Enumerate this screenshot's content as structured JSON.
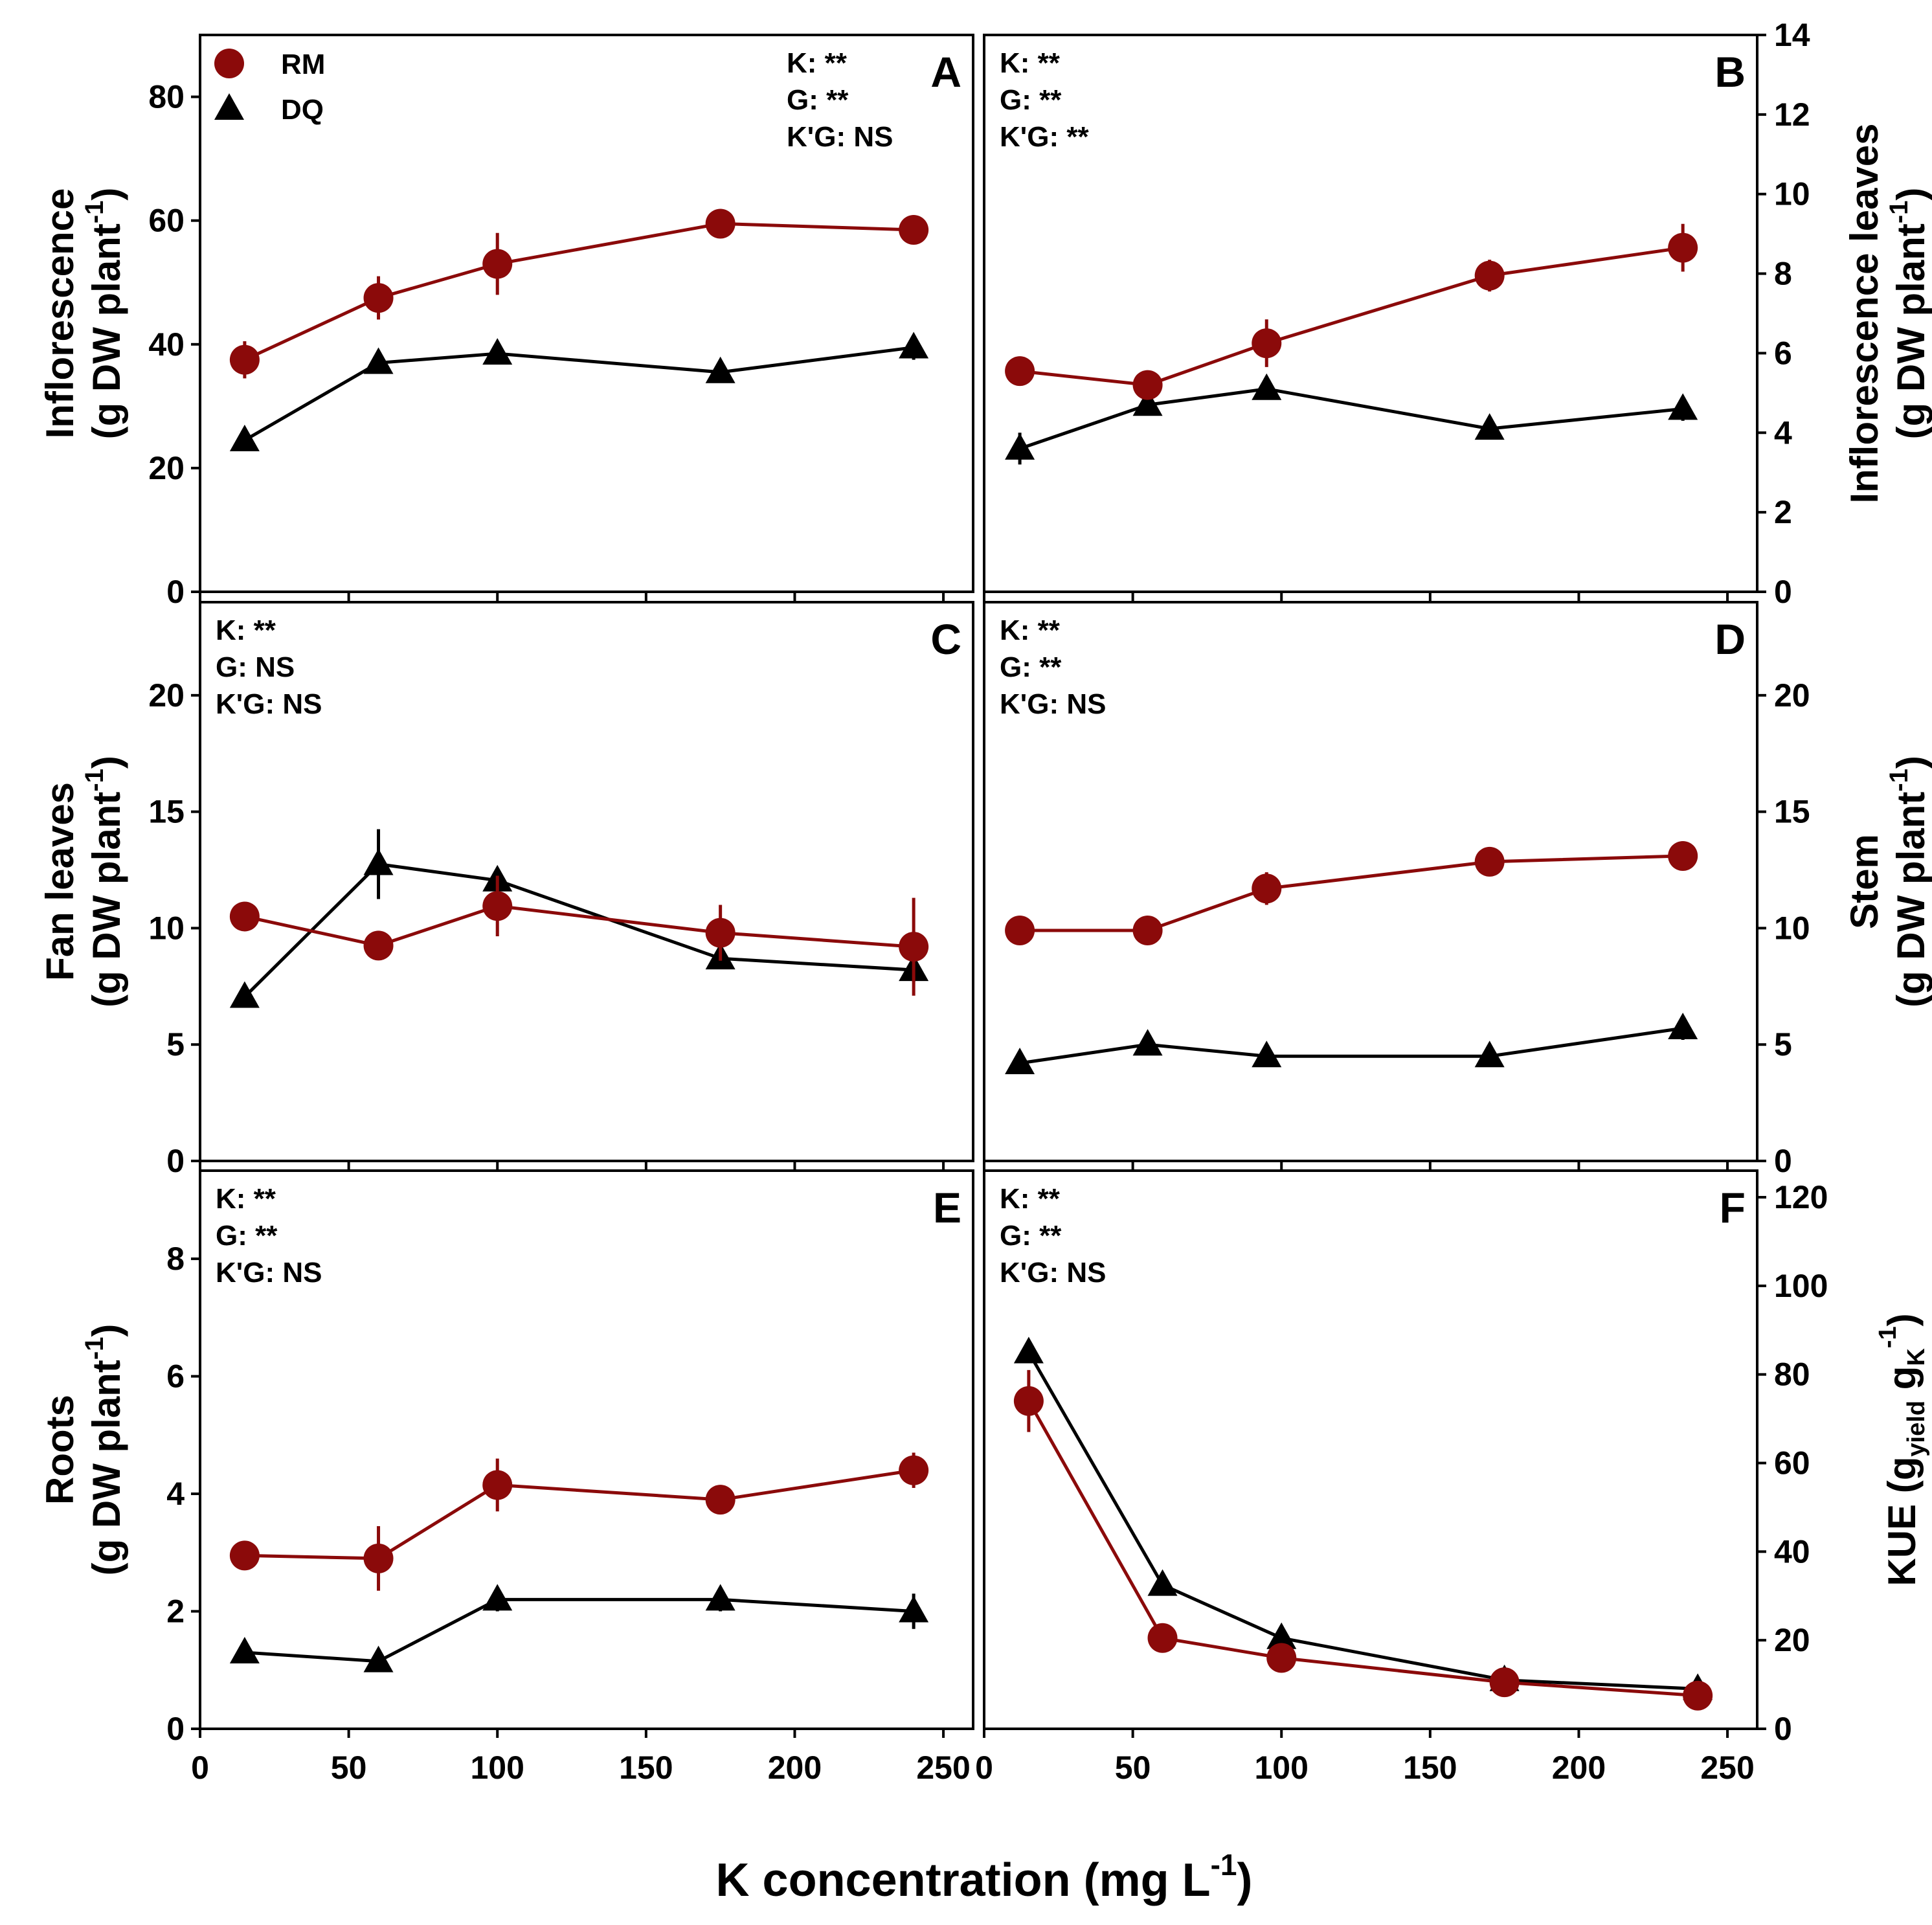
{
  "figure": {
    "xlabel": "K concentration (mg L",
    "xlabel_sup": "-1",
    "xlabel_close": ")",
    "x_ticks": [
      "0",
      "50",
      "100",
      "150",
      "200",
      "250"
    ],
    "legend": [
      {
        "name": "RM",
        "marker": "circle"
      },
      {
        "name": "DQ",
        "marker": "triangle"
      }
    ],
    "colors": {
      "RM": "#8b0a0a",
      "DQ": "#000000"
    }
  },
  "panels": [
    {
      "letter": "A",
      "ylabel_line1": "Inflorescence",
      "ylabel_line2_pre": "(g DW plant",
      "ylabel_line2_sup": "-1",
      "ylabel_line2_post": ")",
      "stats": [
        "K: **",
        "G: **",
        "K'G: NS"
      ]
    },
    {
      "letter": "B",
      "ylabel_line1": "Inflorescence leaves",
      "ylabel_line2_pre": "(g DW plant",
      "ylabel_line2_sup": "-1",
      "ylabel_line2_post": ")",
      "stats": [
        "K: **",
        "G: **",
        "K'G: **"
      ]
    },
    {
      "letter": "C",
      "ylabel_line1": "Fan leaves",
      "ylabel_line2_pre": "(g DW plant",
      "ylabel_line2_sup": "-1",
      "ylabel_line2_post": ")",
      "stats": [
        "K: **",
        "G: NS",
        "K'G: NS"
      ]
    },
    {
      "letter": "D",
      "ylabel_line1": "Stem",
      "ylabel_line2_pre": "(g DW plant",
      "ylabel_line2_sup": "-1",
      "ylabel_line2_post": ")",
      "stats": [
        "K: **",
        "G: **",
        "K'G: NS"
      ]
    },
    {
      "letter": "E",
      "ylabel_line1": "Roots",
      "ylabel_line2_pre": "(g DW plant",
      "ylabel_line2_sup": "-1",
      "ylabel_line2_post": ")",
      "stats": [
        "K: **",
        "G: **",
        "K'G: NS"
      ]
    },
    {
      "letter": "F",
      "ylabel_line1": "KUE (g",
      "ylabel_sub1": "yield",
      "ylabel_mid": " g",
      "ylabel_sub2": "K",
      "ylabel_sup": "-1",
      "ylabel_close": ")",
      "stats": [
        "K: **",
        "G: **",
        "K'G: NS"
      ]
    }
  ],
  "chart_data": [
    {
      "type": "line",
      "panel": "A",
      "xlim": [
        0,
        260
      ],
      "ylim": [
        0,
        90
      ],
      "yticks": [
        0,
        20,
        40,
        60,
        80
      ],
      "yaxis": "left",
      "series": [
        {
          "name": "RM",
          "x": [
            15,
            60,
            100,
            175,
            240
          ],
          "y": [
            37.5,
            47.5,
            53,
            59.5,
            58.5
          ],
          "err": [
            3,
            3.5,
            5,
            1,
            1
          ]
        },
        {
          "name": "DQ",
          "x": [
            15,
            60,
            100,
            175,
            240
          ],
          "y": [
            24.5,
            37,
            38.5,
            35.5,
            39.5
          ],
          "err": [
            1,
            1,
            1,
            1,
            2
          ]
        }
      ]
    },
    {
      "type": "line",
      "panel": "B",
      "xlim": [
        0,
        260
      ],
      "ylim": [
        0,
        14
      ],
      "yticks": [
        0,
        2,
        4,
        6,
        8,
        10,
        12,
        14
      ],
      "yaxis": "right",
      "series": [
        {
          "name": "RM",
          "x": [
            12,
            55,
            95,
            170,
            235
          ],
          "y": [
            5.55,
            5.2,
            6.25,
            7.95,
            8.65
          ],
          "err": [
            0.3,
            0.2,
            0.6,
            0.4,
            0.6
          ]
        },
        {
          "name": "DQ",
          "x": [
            12,
            55,
            95,
            170,
            235
          ],
          "y": [
            3.6,
            4.7,
            5.1,
            4.1,
            4.6
          ],
          "err": [
            0.4,
            0.2,
            0.2,
            0.2,
            0.3
          ]
        }
      ]
    },
    {
      "type": "line",
      "panel": "C",
      "xlim": [
        0,
        260
      ],
      "ylim": [
        0,
        24
      ],
      "yticks": [
        0,
        5,
        10,
        15,
        20
      ],
      "yaxis": "left",
      "series": [
        {
          "name": "RM",
          "x": [
            15,
            60,
            100,
            175,
            240
          ],
          "y": [
            10.5,
            9.25,
            10.95,
            9.8,
            9.2
          ],
          "err": [
            0.3,
            0.3,
            1.3,
            1.2,
            2.1
          ]
        },
        {
          "name": "DQ",
          "x": [
            15,
            60,
            100,
            175,
            240
          ],
          "y": [
            7.05,
            12.75,
            12.05,
            8.7,
            8.2
          ],
          "err": [
            0.3,
            1.5,
            0.3,
            0.3,
            0.5
          ]
        }
      ]
    },
    {
      "type": "line",
      "panel": "D",
      "xlim": [
        0,
        260
      ],
      "ylim": [
        0,
        24
      ],
      "yticks": [
        0,
        5,
        10,
        15,
        20
      ],
      "yaxis": "right",
      "series": [
        {
          "name": "RM",
          "x": [
            12,
            55,
            95,
            170,
            235
          ],
          "y": [
            9.9,
            9.9,
            11.7,
            12.85,
            13.1
          ],
          "err": [
            0.3,
            0.3,
            0.7,
            0.3,
            0.3
          ]
        },
        {
          "name": "DQ",
          "x": [
            12,
            55,
            95,
            170,
            235
          ],
          "y": [
            4.2,
            5,
            4.5,
            4.5,
            5.7
          ],
          "err": [
            0.2,
            0.2,
            0.2,
            0.2,
            0.5
          ]
        }
      ]
    },
    {
      "type": "line",
      "panel": "E",
      "xlim": [
        0,
        260
      ],
      "ylim": [
        0,
        9.5
      ],
      "yticks": [
        0,
        2,
        4,
        6,
        8
      ],
      "yaxis": "left",
      "series": [
        {
          "name": "RM",
          "x": [
            15,
            60,
            100,
            175,
            240
          ],
          "y": [
            2.95,
            2.9,
            4.15,
            3.9,
            4.4
          ],
          "err": [
            0.1,
            0.55,
            0.45,
            0.1,
            0.3
          ]
        },
        {
          "name": "DQ",
          "x": [
            15,
            60,
            100,
            175,
            240
          ],
          "y": [
            1.3,
            1.15,
            2.2,
            2.2,
            2.0
          ],
          "err": [
            0.1,
            0.1,
            0.2,
            0.2,
            0.3
          ]
        }
      ]
    },
    {
      "type": "line",
      "panel": "F",
      "xlim": [
        0,
        260
      ],
      "ylim": [
        0,
        126
      ],
      "yticks": [
        0,
        20,
        40,
        60,
        80,
        100,
        120
      ],
      "yaxis": "right",
      "series": [
        {
          "name": "RM",
          "x": [
            15,
            60,
            100,
            175,
            240
          ],
          "y": [
            74,
            20.5,
            16,
            10.5,
            7.5
          ],
          "err": [
            7,
            1,
            1,
            1,
            1
          ]
        },
        {
          "name": "DQ",
          "x": [
            15,
            60,
            100,
            175,
            240
          ],
          "y": [
            85,
            32.5,
            20.5,
            11,
            9
          ],
          "err": [
            1,
            1,
            1,
            1,
            1
          ]
        }
      ]
    }
  ]
}
